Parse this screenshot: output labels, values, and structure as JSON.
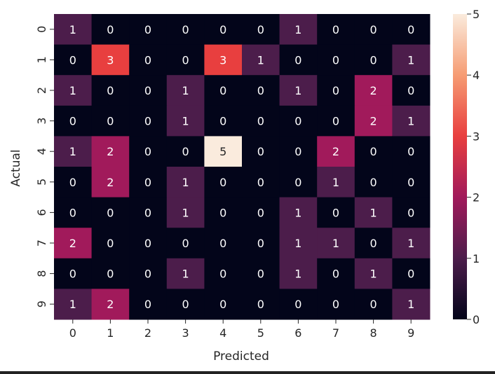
{
  "chart_data": {
    "type": "heatmap",
    "title": "",
    "xlabel": "Predicted",
    "ylabel": "Actual",
    "x_categories": [
      "0",
      "1",
      "2",
      "3",
      "4",
      "5",
      "6",
      "7",
      "8",
      "9"
    ],
    "y_categories": [
      "0",
      "1",
      "2",
      "3",
      "4",
      "5",
      "6",
      "7",
      "8",
      "9"
    ],
    "values": [
      [
        1,
        0,
        0,
        0,
        0,
        0,
        1,
        0,
        0,
        0
      ],
      [
        0,
        3,
        0,
        0,
        3,
        1,
        0,
        0,
        0,
        1
      ],
      [
        1,
        0,
        0,
        1,
        0,
        0,
        1,
        0,
        2,
        0
      ],
      [
        0,
        0,
        0,
        1,
        0,
        0,
        0,
        0,
        2,
        1
      ],
      [
        1,
        2,
        0,
        0,
        5,
        0,
        0,
        2,
        0,
        0
      ],
      [
        0,
        2,
        0,
        1,
        0,
        0,
        0,
        1,
        0,
        0
      ],
      [
        0,
        0,
        0,
        1,
        0,
        0,
        1,
        0,
        1,
        0
      ],
      [
        2,
        0,
        0,
        0,
        0,
        0,
        1,
        1,
        0,
        1
      ],
      [
        0,
        0,
        0,
        1,
        0,
        0,
        1,
        0,
        1,
        0
      ],
      [
        1,
        2,
        0,
        0,
        0,
        0,
        0,
        0,
        0,
        1
      ]
    ],
    "colorbar": {
      "min": 0,
      "max": 5,
      "ticks": [
        "0",
        "1",
        "2",
        "3",
        "4",
        "5"
      ]
    },
    "colormap": [
      "#03051a",
      "#4c1d4b",
      "#a11a5b",
      "#e83f3f",
      "#f69c73",
      "#faebdd"
    ],
    "annotation_colors": {
      "dark_cell": "#ffffff",
      "light_cell": "#262626"
    }
  }
}
